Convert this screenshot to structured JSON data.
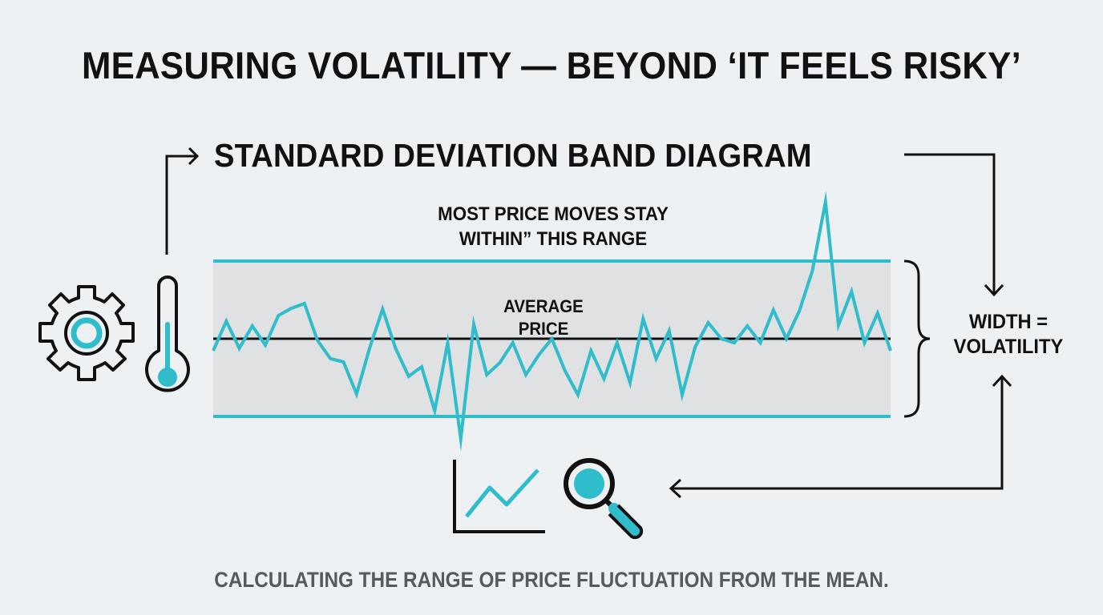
{
  "title": "MEASURING VOLATILITY — BEYOND ‘IT FEELS RISKY’",
  "subtitle": "STANDARD DEVIATION BAND DIAGRAM",
  "annotations": {
    "range_line1": "MOST PRICE MOVES STAY",
    "range_line2": "WITHIN” THIS RANGE",
    "average_line1": "AVERAGE",
    "average_line2": "PRICE",
    "width_line1": "WIDTH =",
    "width_line2": "VOLATILITY"
  },
  "caption": "CALCULATING THE RANGE OF PRICE FLUCTUATION FROM THE MEAN.",
  "colors": {
    "background": "#edf1f3",
    "accent": "#2fbccb",
    "band_fill": "#dfe1e3",
    "ink": "#111111",
    "caption": "#555a5e"
  },
  "icons": [
    "gear-icon",
    "thermometer-icon",
    "line-chart-icon",
    "magnifier-icon"
  ],
  "price_series": [
    -15,
    22,
    -12,
    16,
    -8,
    29,
    38,
    44,
    -2,
    -25,
    -29,
    -69,
    -12,
    37,
    -12,
    -47,
    -35,
    -90,
    -5,
    -125,
    18,
    -45,
    -30,
    -5,
    -45,
    -20,
    0,
    -40,
    -70,
    -15,
    -50,
    -5,
    -55,
    25,
    -25,
    10,
    -70,
    -10,
    20,
    0,
    -5,
    16,
    -5,
    36,
    0,
    35,
    85,
    171,
    17,
    59,
    -5,
    32,
    -15
  ]
}
